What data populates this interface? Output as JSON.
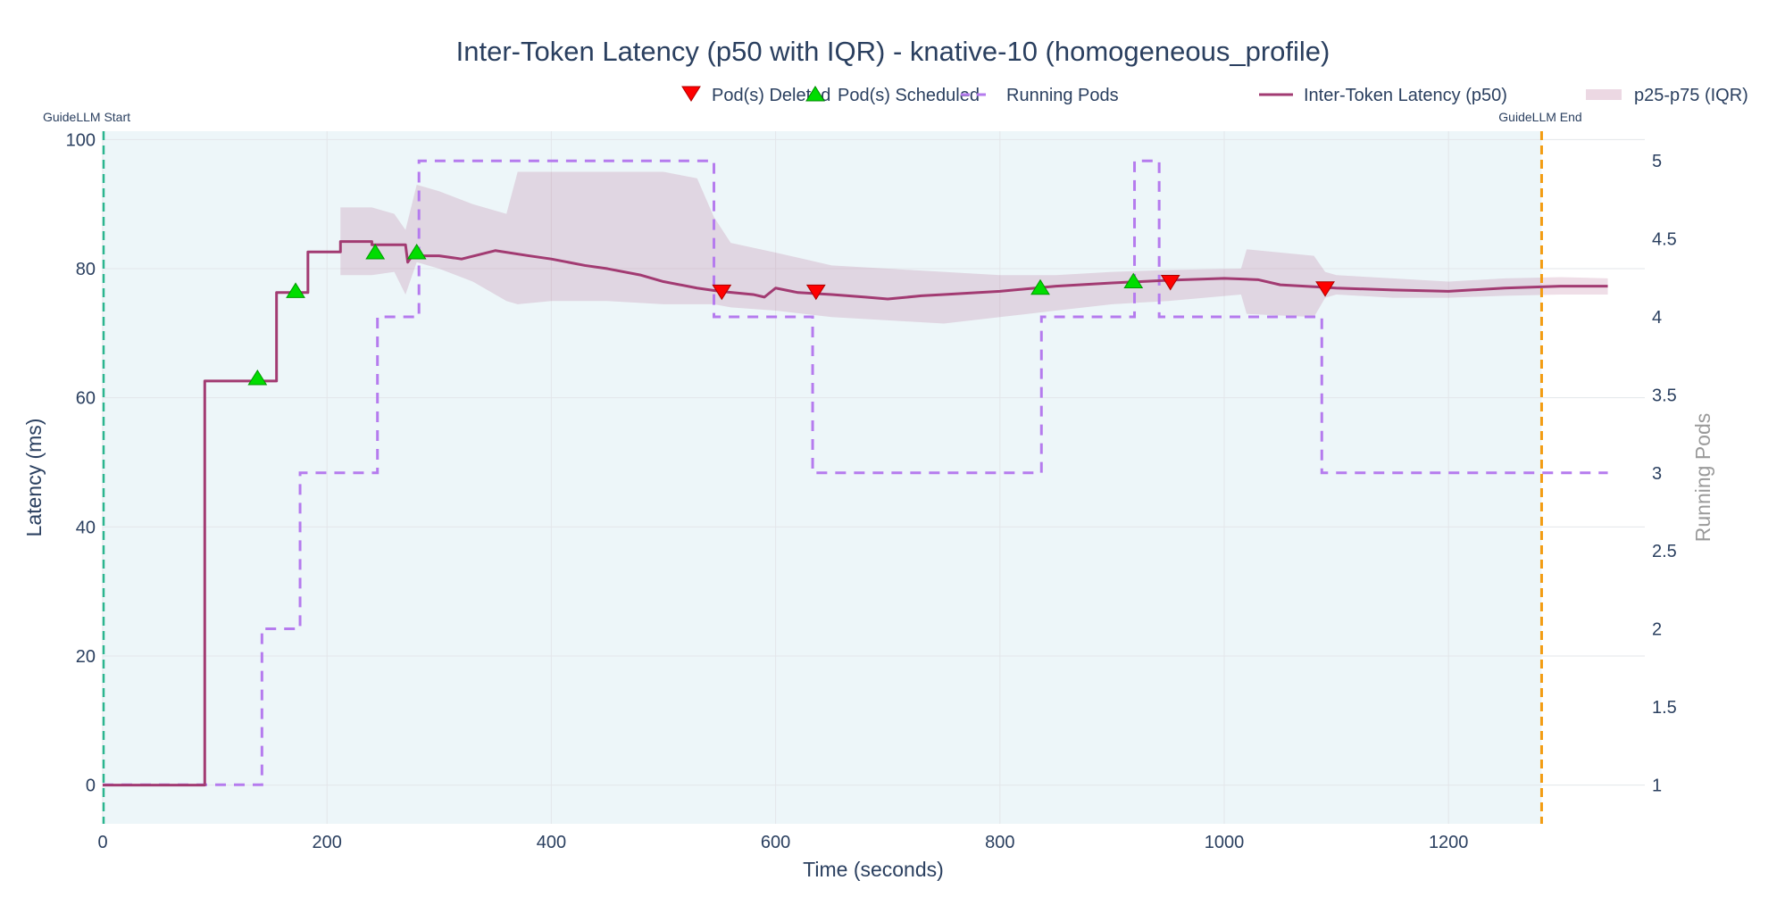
{
  "chart_data": {
    "type": "line",
    "title": "Inter-Token Latency (p50 with IQR) - knative-10 (homogeneous_profile)",
    "xlabel": "Time (seconds)",
    "ylabel": "Latency (ms)",
    "y2label": "Running Pods",
    "xlim": [
      0,
      1375
    ],
    "ylim": [
      -6,
      101.3
    ],
    "y2lim": [
      0.75,
      5.19
    ],
    "xticks": [
      0,
      200,
      400,
      600,
      800,
      1000,
      1200
    ],
    "yticks": [
      0,
      20,
      40,
      60,
      80,
      100
    ],
    "y2ticks": [
      1,
      1.5,
      2,
      2.5,
      3,
      3.5,
      4,
      4.5,
      5
    ],
    "grid": true,
    "legend_position": "top-right",
    "colors": {
      "p50": "#a23b72",
      "iqr": "rgba(162,59,114,0.17)",
      "pods": "#b57bee",
      "deleted": "#ff0000",
      "scheduled": "#00dd00",
      "start_line": "#2bb58f",
      "end_line": "#f39c12",
      "benchmark_bg": "#edf6f9"
    },
    "legend": [
      {
        "name": "Pod(s) Deleted",
        "symbol": "triangle-down"
      },
      {
        "name": "Pod(s) Scheduled",
        "symbol": "triangle-up"
      },
      {
        "name": "Running Pods",
        "symbol": "dash"
      },
      {
        "name": "Inter-Token Latency (p50)",
        "symbol": "line"
      },
      {
        "name": "p25-p75 (IQR)",
        "symbol": "band"
      }
    ],
    "annotations": {
      "start": {
        "label": "GuideLLM Start",
        "x": 0
      },
      "end": {
        "label": "GuideLLM End",
        "x": 1283
      }
    },
    "p50": {
      "x": [
        0,
        91,
        91,
        155,
        155,
        183,
        183,
        212,
        212,
        240,
        240,
        270,
        272,
        276,
        300,
        320,
        350,
        380,
        400,
        430,
        450,
        480,
        500,
        530,
        550,
        580,
        590,
        600,
        620,
        650,
        680,
        700,
        730,
        750,
        800,
        850,
        900,
        950,
        1000,
        1030,
        1050,
        1080,
        1100,
        1150,
        1200,
        1250,
        1300,
        1342
      ],
      "y": [
        0,
        0,
        62.6,
        62.6,
        76.3,
        76.3,
        82.6,
        82.6,
        84.2,
        84.2,
        83.7,
        83.7,
        81,
        82,
        82,
        81.5,
        82.8,
        82,
        81.5,
        80.5,
        80,
        79,
        78,
        77,
        76.5,
        76,
        75.6,
        77,
        76.3,
        76,
        75.6,
        75.3,
        75.8,
        76,
        76.5,
        77.3,
        77.8,
        78.2,
        78.5,
        78.3,
        77.5,
        77.2,
        77,
        76.7,
        76.5,
        77,
        77.3,
        77.3
      ]
    },
    "iqr": {
      "x": [
        212,
        240,
        260,
        270,
        280,
        300,
        330,
        360,
        370,
        400,
        450,
        500,
        530,
        545,
        560,
        600,
        650,
        700,
        750,
        800,
        850,
        900,
        950,
        1015,
        1020,
        1080,
        1090,
        1100,
        1150,
        1200,
        1250,
        1300,
        1342
      ],
      "lower": [
        79,
        79,
        79.5,
        76,
        81,
        80,
        78,
        75,
        74.5,
        75,
        75,
        74.5,
        74.5,
        74.5,
        74,
        73.5,
        72.5,
        72,
        71.5,
        72.5,
        73.5,
        74.5,
        75,
        76,
        73,
        72.5,
        75.5,
        76,
        75.5,
        75.5,
        75.8,
        76,
        76
      ],
      "upper": [
        89.5,
        89.5,
        88.5,
        86,
        93,
        92,
        90,
        88.5,
        95,
        95,
        95,
        95,
        94,
        88,
        84,
        82.5,
        80.5,
        80,
        79.5,
        79,
        79,
        79.5,
        79.8,
        80,
        83,
        82,
        79.5,
        79,
        78.5,
        78,
        78.5,
        78.7,
        78.5
      ]
    },
    "running_pods": {
      "x": [
        0,
        142,
        176,
        245,
        282,
        545,
        633,
        837,
        920,
        942,
        1087,
        1342
      ],
      "y": [
        1,
        2,
        3,
        4,
        5,
        4,
        3,
        4,
        5,
        4,
        3,
        3
      ]
    },
    "pods_deleted": {
      "x": [
        552,
        636,
        952,
        1090
      ],
      "y": [
        76.5,
        76.5,
        78,
        77
      ]
    },
    "pods_scheduled": {
      "x": [
        138,
        172,
        243,
        280,
        836,
        919
      ],
      "y": [
        63,
        76.5,
        82.5,
        82.5,
        77,
        78
      ]
    }
  }
}
